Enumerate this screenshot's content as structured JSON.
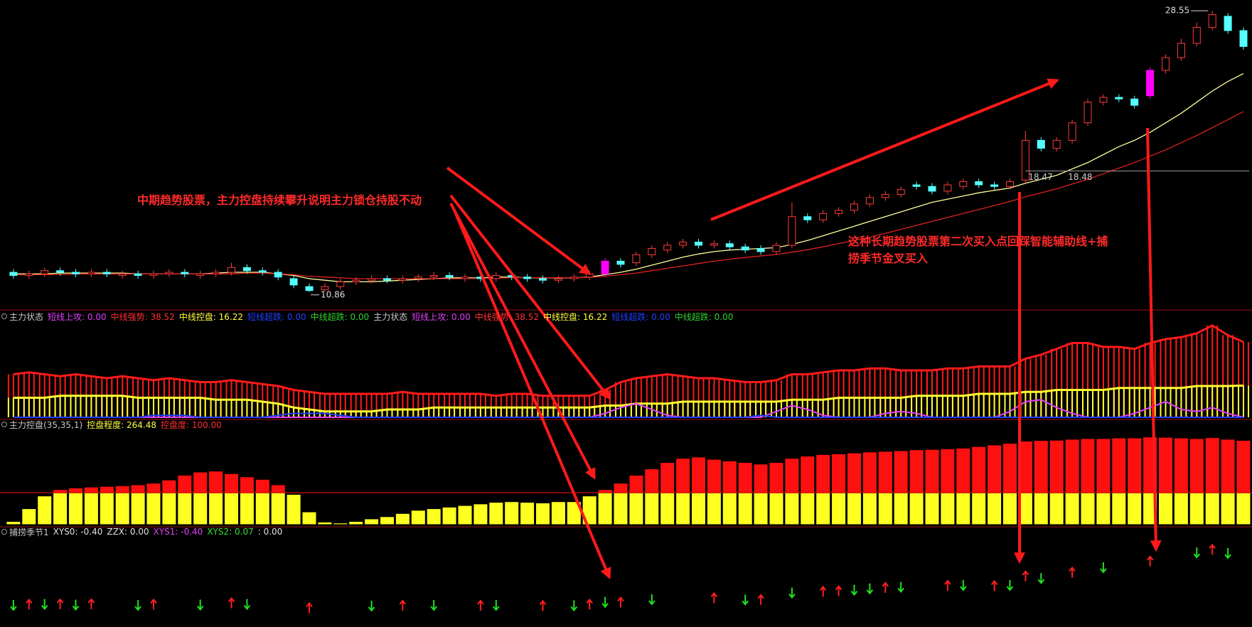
{
  "chart_data": [
    {
      "type": "candlestick",
      "open": [
        12.1,
        11.9,
        12.0,
        12.2,
        12.1,
        12.0,
        12.1,
        11.9,
        12.0,
        11.9,
        12.0,
        12.1,
        11.9,
        12.0,
        12.1,
        12.4,
        12.2,
        12.1,
        11.7,
        11.2,
        11.0,
        11.2,
        11.5,
        11.6,
        11.7,
        11.6,
        11.7,
        11.8,
        11.9,
        11.7,
        11.8,
        11.7,
        11.9,
        11.8,
        11.7,
        11.6,
        11.7,
        11.8,
        12.0,
        12.8,
        12.7,
        13.2,
        13.5,
        13.8,
        14.0,
        13.8,
        13.9,
        13.7,
        13.6,
        13.4,
        13.8,
        15.6,
        15.4,
        15.8,
        16.0,
        16.4,
        16.8,
        17.0,
        17.6,
        17.5,
        17.2,
        17.5,
        17.8,
        17.6,
        17.5,
        17.9,
        20.4,
        19.9,
        20.4,
        21.5,
        22.8,
        23.1,
        23.0,
        23.2,
        24.8,
        25.6,
        26.5,
        27.5,
        28.2,
        27.3
      ],
      "high": [
        12.3,
        12.2,
        12.4,
        12.4,
        12.3,
        12.3,
        12.3,
        12.2,
        12.2,
        12.2,
        12.3,
        12.3,
        12.2,
        12.3,
        12.7,
        12.6,
        12.4,
        12.3,
        11.9,
        11.4,
        11.4,
        11.7,
        11.8,
        11.9,
        11.9,
        11.9,
        12.0,
        12.1,
        12.1,
        12.0,
        12.0,
        12.1,
        12.1,
        12.0,
        11.9,
        11.9,
        12.0,
        12.2,
        13.0,
        13.0,
        13.4,
        13.8,
        14.0,
        14.2,
        14.2,
        14.1,
        14.1,
        13.9,
        13.8,
        14.0,
        16.5,
        15.8,
        16.0,
        16.2,
        16.6,
        17.0,
        17.2,
        17.5,
        17.8,
        17.7,
        17.8,
        18.0,
        18.0,
        17.8,
        18.0,
        21.0,
        20.6,
        20.6,
        21.7,
        23.0,
        23.3,
        23.3,
        23.2,
        25.0,
        25.8,
        26.8,
        27.8,
        28.55,
        28.4,
        27.5
      ],
      "low": [
        11.7,
        11.7,
        11.8,
        11.9,
        11.8,
        11.8,
        11.8,
        11.7,
        11.7,
        11.7,
        11.8,
        11.8,
        11.7,
        11.8,
        11.9,
        12.0,
        11.9,
        11.6,
        11.1,
        10.86,
        10.9,
        11.0,
        11.3,
        11.4,
        11.4,
        11.4,
        11.5,
        11.6,
        11.6,
        11.5,
        11.5,
        11.5,
        11.6,
        11.5,
        11.4,
        11.4,
        11.5,
        11.6,
        11.8,
        12.4,
        12.5,
        13.0,
        13.3,
        13.6,
        13.6,
        13.6,
        13.5,
        13.3,
        13.2,
        13.2,
        13.6,
        15.2,
        15.2,
        15.6,
        15.8,
        16.2,
        16.6,
        16.8,
        17.3,
        17.0,
        17.0,
        17.3,
        17.4,
        17.3,
        17.3,
        17.7,
        19.7,
        19.7,
        20.2,
        21.3,
        22.6,
        22.8,
        22.4,
        23.0,
        24.6,
        25.4,
        26.3,
        27.3,
        27.1,
        26.1
      ],
      "close": [
        11.9,
        12.0,
        12.2,
        12.1,
        12.0,
        12.1,
        12.0,
        12.0,
        11.9,
        12.0,
        12.1,
        12.0,
        12.0,
        12.1,
        12.4,
        12.2,
        12.1,
        11.8,
        11.3,
        10.95,
        11.2,
        11.5,
        11.6,
        11.7,
        11.6,
        11.7,
        11.8,
        11.9,
        11.8,
        11.8,
        11.7,
        11.9,
        11.8,
        11.7,
        11.6,
        11.7,
        11.8,
        12.0,
        12.8,
        12.6,
        13.2,
        13.6,
        13.8,
        14.0,
        13.8,
        13.9,
        13.7,
        13.5,
        13.4,
        13.8,
        15.6,
        15.4,
        15.8,
        16.0,
        16.4,
        16.8,
        17.0,
        17.3,
        17.5,
        17.2,
        17.6,
        17.8,
        17.6,
        17.5,
        17.8,
        20.4,
        19.9,
        20.4,
        21.5,
        22.8,
        23.1,
        23.0,
        22.6,
        24.8,
        25.6,
        26.5,
        27.5,
        28.3,
        27.3,
        26.3
      ],
      "highlight": [
        38,
        73
      ],
      "up_color": "#ff3b3b",
      "down_color": "#54ffff",
      "highlight_color": "#ff00ff",
      "ylim": [
        10,
        29
      ],
      "lines": [
        {
          "color": "#ffff9a",
          "values": [
            12.0,
            12.0,
            12.0,
            12.05,
            12.05,
            12.05,
            12.05,
            12.05,
            12.0,
            12.0,
            12.0,
            12.0,
            12.0,
            12.05,
            12.1,
            12.1,
            12.1,
            12.0,
            11.9,
            11.7,
            11.6,
            11.5,
            11.5,
            11.5,
            11.55,
            11.6,
            11.65,
            11.7,
            11.75,
            11.75,
            11.75,
            11.8,
            11.8,
            11.75,
            11.75,
            11.75,
            11.75,
            11.8,
            11.95,
            12.1,
            12.3,
            12.55,
            12.8,
            13.05,
            13.25,
            13.4,
            13.5,
            13.55,
            13.6,
            13.65,
            13.85,
            14.1,
            14.4,
            14.7,
            15.0,
            15.3,
            15.6,
            15.9,
            16.2,
            16.5,
            16.7,
            16.9,
            17.1,
            17.25,
            17.4,
            17.7,
            17.95,
            18.2,
            18.6,
            19.0,
            19.5,
            20.0,
            20.4,
            20.9,
            21.5,
            22.1,
            22.8,
            23.5,
            24.1,
            24.6
          ]
        },
        {
          "color": "#e02020",
          "values": [
            11.95,
            11.95,
            11.95,
            11.95,
            12.0,
            12.0,
            12.0,
            12.0,
            12.0,
            12.0,
            12.0,
            12.0,
            12.0,
            12.0,
            12.0,
            12.05,
            12.05,
            12.0,
            11.95,
            11.85,
            11.8,
            11.75,
            11.7,
            11.7,
            11.7,
            11.7,
            11.7,
            11.7,
            11.7,
            11.7,
            11.72,
            11.74,
            11.76,
            11.76,
            11.76,
            11.76,
            11.76,
            11.78,
            11.85,
            11.95,
            12.05,
            12.2,
            12.35,
            12.5,
            12.65,
            12.8,
            12.92,
            13.03,
            13.13,
            13.22,
            13.36,
            13.52,
            13.7,
            13.9,
            14.1,
            14.3,
            14.55,
            14.8,
            15.05,
            15.3,
            15.55,
            15.8,
            16.05,
            16.3,
            16.55,
            16.85,
            17.1,
            17.35,
            17.65,
            17.95,
            18.3,
            18.65,
            19.0,
            19.4,
            19.8,
            20.25,
            20.7,
            21.2,
            21.7,
            22.2
          ]
        }
      ],
      "price_labels": [
        28.55,
        10.86,
        18.47,
        18.48
      ],
      "price_label_index": [
        77,
        19,
        65,
        67
      ],
      "annotations": [
        "中期趋势股票，主力控盘持续攀升说明主力锁仓持股不动",
        "这种长期趋势股票第二次买入点回踩智能辅助线+捕",
        "捞季节金叉买入"
      ]
    },
    {
      "type": "bar-line",
      "header": [
        {
          "text": "主力状态",
          "color": "#c8c8c8"
        },
        {
          "text": "短线上攻: 0.00",
          "color": "#e040fb"
        },
        {
          "text": "中线强势: 38.52",
          "color": "#ff3030"
        },
        {
          "text": "中线控盘: 16.22",
          "color": "#ffff40"
        },
        {
          "text": "短线超跌: 0.00",
          "color": "#2040ff"
        },
        {
          "text": "中线超跌: 0.00",
          "color": "#30d030"
        },
        {
          "text": "主力状态",
          "color": "#c8c8c8"
        },
        {
          "text": "短线上攻: 0.00",
          "color": "#e040fb"
        },
        {
          "text": "中线强势: 38.52",
          "color": "#ff3030"
        },
        {
          "text": "中线控盘: 16.22",
          "color": "#ffff40"
        },
        {
          "text": "短线超跌: 0.00",
          "color": "#2040ff"
        },
        {
          "text": "中线超跌: 0.00",
          "color": "#30d030"
        }
      ],
      "ylim": [
        0,
        48
      ],
      "series": [
        {
          "style": "bar",
          "color": "#ff1a1a",
          "values": [
            22,
            23,
            22,
            21,
            22,
            21,
            20,
            21,
            20,
            19,
            20,
            19,
            18,
            18,
            19,
            18,
            17,
            16,
            14,
            13,
            12,
            12,
            12,
            12,
            12,
            13,
            12,
            12,
            12,
            12,
            12,
            11,
            12,
            12,
            11,
            11,
            11,
            11,
            14,
            18,
            20,
            21,
            22,
            21,
            20,
            20,
            19,
            18,
            18,
            19,
            22,
            22,
            23,
            24,
            24,
            25,
            25,
            24,
            24,
            24,
            25,
            25,
            26,
            26,
            26,
            30,
            32,
            35,
            38,
            38,
            36,
            36,
            35,
            38,
            40,
            41,
            43,
            47,
            42,
            38.52
          ]
        },
        {
          "style": "bar",
          "color": "#ffff30",
          "values": [
            10,
            10,
            10,
            11,
            11,
            11,
            11,
            11,
            10,
            10,
            10,
            10,
            10,
            9,
            9,
            9,
            8,
            7,
            5,
            4,
            3,
            3,
            3,
            3,
            4,
            4,
            4,
            5,
            5,
            5,
            5,
            5,
            5,
            5,
            5,
            5,
            5,
            5,
            6,
            6,
            7,
            7,
            7,
            8,
            8,
            8,
            8,
            8,
            8,
            8,
            9,
            9,
            9,
            10,
            10,
            10,
            10,
            10,
            11,
            11,
            11,
            11,
            12,
            12,
            12,
            13,
            13,
            14,
            14,
            14,
            14,
            15,
            15,
            15,
            15,
            15,
            16,
            16,
            16,
            16.22
          ]
        },
        {
          "style": "line",
          "color": "#e040fb",
          "values": [
            0,
            0,
            0,
            0,
            0,
            0,
            0,
            0,
            0,
            0,
            0,
            0,
            0,
            0,
            0,
            0,
            0,
            0,
            0,
            0,
            0,
            0,
            0,
            0,
            0,
            0,
            0,
            0,
            0,
            0,
            0,
            0,
            0,
            0,
            0,
            0,
            0,
            0,
            2,
            5,
            7,
            4,
            1,
            0,
            0,
            0,
            0,
            0,
            0,
            3,
            6,
            4,
            1,
            0,
            0,
            0,
            2,
            3,
            2,
            0,
            0,
            0,
            0,
            0,
            3,
            8,
            9,
            5,
            2,
            0,
            0,
            0,
            2,
            5,
            8,
            4,
            3,
            5,
            2,
            0
          ]
        },
        {
          "style": "line",
          "color": "#2040ff",
          "values": [
            0,
            0,
            0,
            0,
            0,
            0,
            0,
            0,
            0,
            1,
            1,
            1,
            0,
            0,
            0,
            0,
            0,
            1,
            2,
            2,
            2,
            1,
            0,
            0,
            0,
            0,
            0,
            0,
            0,
            0,
            0,
            0,
            0,
            0,
            0,
            0,
            0,
            0,
            0,
            0,
            0,
            0,
            0,
            0,
            0,
            0,
            0,
            0,
            1,
            0,
            0,
            0,
            0,
            0,
            0,
            0,
            0,
            0,
            0,
            0,
            0,
            0,
            0,
            0,
            0,
            0,
            0,
            0,
            0,
            0,
            0,
            0,
            0,
            0,
            0,
            0,
            0,
            0,
            0,
            0
          ]
        }
      ]
    },
    {
      "type": "threshold-bar",
      "header": [
        {
          "text": "主力控盘(35,35,1)",
          "color": "#c8c8c8"
        },
        {
          "text": "控盘程度: 264.48",
          "color": "#ffff40"
        },
        {
          "text": "控盘度: 100.00",
          "color": "#ff3030"
        }
      ],
      "ylim": [
        0,
        290
      ],
      "threshold": 100,
      "below_color": "#ffff20",
      "above_color": "#ff1010",
      "values": [
        10,
        50,
        90,
        110,
        115,
        118,
        120,
        122,
        125,
        130,
        140,
        155,
        165,
        168,
        160,
        150,
        142,
        125,
        95,
        40,
        8,
        5,
        10,
        18,
        25,
        35,
        45,
        50,
        55,
        60,
        65,
        70,
        72,
        70,
        68,
        72,
        72,
        90,
        110,
        130,
        155,
        175,
        195,
        208,
        212,
        205,
        200,
        195,
        190,
        195,
        208,
        215,
        220,
        222,
        225,
        228,
        230,
        232,
        235,
        236,
        238,
        240,
        245,
        250,
        255,
        262,
        264,
        265,
        268,
        270,
        270,
        272,
        272,
        275,
        274,
        272,
        270,
        273,
        268,
        264.48
      ]
    },
    {
      "type": "signal",
      "header": [
        {
          "text": "捕捞季节1",
          "color": "#c8c8c8"
        },
        {
          "text": "XYS0: -0.40",
          "color": "#e0e0e0"
        },
        {
          "text": "ZZX: 0.00",
          "color": "#e0e0e0"
        },
        {
          "text": "XYS1: -0.40",
          "color": "#e040fb"
        },
        {
          "text": "XYS2: 0.07",
          "color": "#30e030"
        },
        {
          "text": ": 0.00",
          "color": "#e0e0e0"
        }
      ],
      "up_arrows": [
        1,
        3,
        5,
        9,
        14,
        19,
        25,
        30,
        34,
        37,
        39,
        45,
        48,
        52,
        53,
        56,
        60,
        63,
        65,
        68,
        73,
        77
      ],
      "down_arrows": [
        0,
        2,
        4,
        8,
        12,
        15,
        23,
        27,
        31,
        36,
        38,
        41,
        47,
        50,
        54,
        55,
        57,
        61,
        64,
        66,
        70,
        76,
        78
      ],
      "up_color": "#ff2020",
      "down_color": "#20e020"
    }
  ]
}
